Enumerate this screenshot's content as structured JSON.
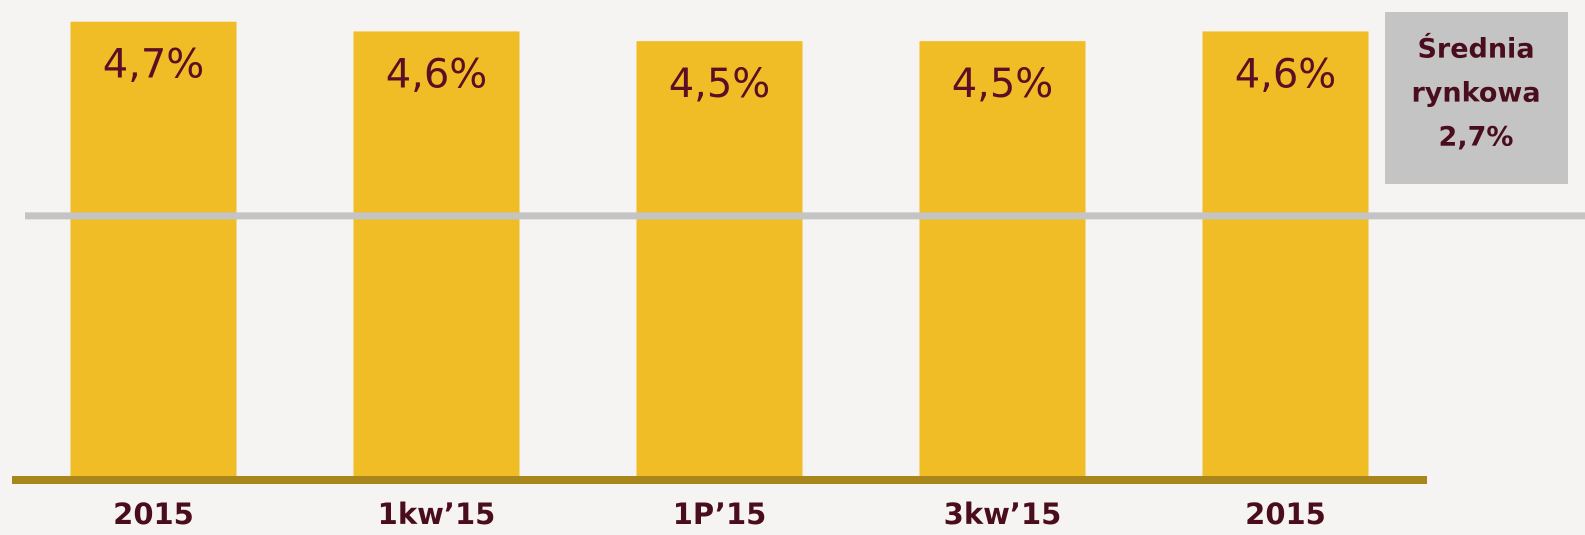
{
  "chart_data": {
    "type": "bar",
    "categories": [
      "2015",
      "1kw’15",
      "1P’15",
      "3kw’15",
      "2015"
    ],
    "values": [
      4.7,
      4.6,
      4.5,
      4.5,
      4.6
    ],
    "value_labels": [
      "4,7%",
      "4,6%",
      "4,5%",
      "4,5%",
      "4,6%"
    ],
    "color": "#f0bd27",
    "ylim": [
      0,
      4.8
    ],
    "average": {
      "name_lines": [
        "Średnia",
        "rynkowa"
      ],
      "value": 2.7,
      "value_label": "2,7%",
      "color": "#c4c4c4"
    }
  }
}
